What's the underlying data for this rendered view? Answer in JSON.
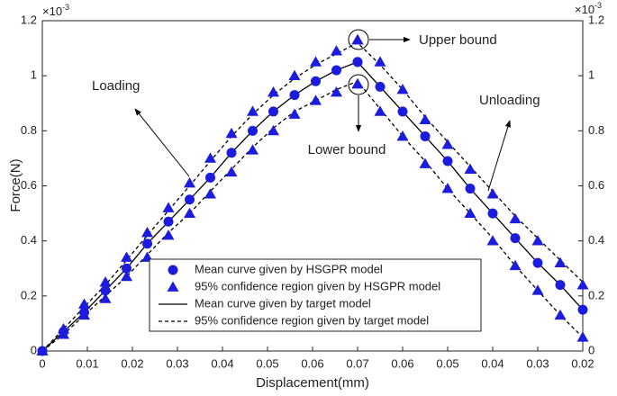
{
  "chart_data": {
    "type": "line",
    "xlabel": "Displacement(mm)",
    "ylabel": "Force(N)",
    "y_multiplier": {
      "base": "×10",
      "exponent": "-3"
    },
    "xlim_loading": [
      0,
      0.07
    ],
    "xlim_unloading": [
      0.07,
      0.02
    ],
    "xticks_loading": [
      0,
      0.01,
      0.02,
      0.03,
      0.04,
      0.05,
      0.06,
      0.07
    ],
    "xticks_unloading": [
      0.06,
      0.05,
      0.04,
      0.03,
      0.02
    ],
    "ylim": [
      0,
      1.2
    ],
    "yticks": [
      0,
      0.2,
      0.4,
      0.6,
      0.8,
      1,
      1.2
    ],
    "y2lim": [
      0,
      1.2
    ],
    "y2ticks": [
      0,
      0.2,
      0.4,
      0.6,
      0.8,
      1,
      1.2
    ],
    "x_loading": [
      0,
      0.0047,
      0.0093,
      0.014,
      0.0187,
      0.0233,
      0.028,
      0.0327,
      0.0373,
      0.042,
      0.0467,
      0.0513,
      0.056,
      0.0607,
      0.0653,
      0.07
    ],
    "x_unloading": [
      0.07,
      0.065,
      0.06,
      0.055,
      0.05,
      0.045,
      0.04,
      0.035,
      0.03,
      0.025,
      0.02
    ],
    "series": [
      {
        "name": "Mean curve given by HSGPR model",
        "marker": "circle",
        "color": "#1c1cdc",
        "bounds": [
          {
            "loading": [
              0,
              0.07,
              0.14,
              0.22,
              0.3,
              0.39,
              0.47,
              0.55,
              0.63,
              0.72,
              0.8,
              0.87,
              0.93,
              0.98,
              1.02,
              1.05
            ],
            "unloading": [
              1.05,
              0.96,
              0.87,
              0.78,
              0.69,
              0.59,
              0.5,
              0.41,
              0.32,
              0.24,
              0.15
            ]
          }
        ]
      },
      {
        "name": "95% confidence region given by HSGPR model",
        "marker": "triangle",
        "color": "#1c1cdc",
        "bounds": [
          {
            "loading": [
              0,
              0.08,
              0.17,
              0.25,
              0.34,
              0.43,
              0.52,
              0.61,
              0.7,
              0.79,
              0.87,
              0.94,
              1.0,
              1.05,
              1.09,
              1.13
            ],
            "unloading": [
              1.13,
              1.05,
              0.95,
              0.84,
              0.75,
              0.66,
              0.57,
              0.48,
              0.4,
              0.32,
              0.24
            ]
          },
          {
            "loading": [
              0,
              0.06,
              0.13,
              0.19,
              0.27,
              0.34,
              0.42,
              0.5,
              0.57,
              0.65,
              0.73,
              0.8,
              0.86,
              0.91,
              0.94,
              0.97
            ],
            "unloading": [
              0.97,
              0.87,
              0.78,
              0.68,
              0.59,
              0.5,
              0.4,
              0.31,
              0.22,
              0.13,
              0.05
            ]
          }
        ]
      },
      {
        "name": "Mean curve given by target model",
        "line": "solid",
        "color": "#000000",
        "bounds": [
          {
            "loading": [
              0,
              0.07,
              0.14,
              0.22,
              0.3,
              0.39,
              0.47,
              0.55,
              0.63,
              0.72,
              0.8,
              0.87,
              0.93,
              0.98,
              1.02,
              1.05
            ],
            "unloading": [
              1.05,
              0.96,
              0.87,
              0.78,
              0.69,
              0.59,
              0.5,
              0.41,
              0.32,
              0.24,
              0.15
            ]
          }
        ]
      },
      {
        "name": "95% confidence region given by target model",
        "line": "dashed",
        "color": "#000000",
        "bounds": [
          {
            "loading": [
              0,
              0.08,
              0.16,
              0.24,
              0.33,
              0.42,
              0.51,
              0.6,
              0.69,
              0.78,
              0.86,
              0.93,
              0.99,
              1.04,
              1.08,
              1.12
            ],
            "unloading": [
              1.12,
              1.04,
              0.95,
              0.85,
              0.76,
              0.67,
              0.58,
              0.49,
              0.41,
              0.33,
              0.25
            ]
          },
          {
            "loading": [
              0,
              0.06,
              0.13,
              0.2,
              0.27,
              0.35,
              0.43,
              0.5,
              0.58,
              0.66,
              0.74,
              0.81,
              0.87,
              0.91,
              0.95,
              0.98
            ],
            "unloading": [
              0.98,
              0.88,
              0.78,
              0.69,
              0.59,
              0.5,
              0.41,
              0.31,
              0.22,
              0.13,
              0.05
            ]
          }
        ]
      }
    ],
    "legend": "lower center",
    "annotations": [
      "Upper bound",
      "Lower bound",
      "Loading",
      "Unloading"
    ]
  }
}
